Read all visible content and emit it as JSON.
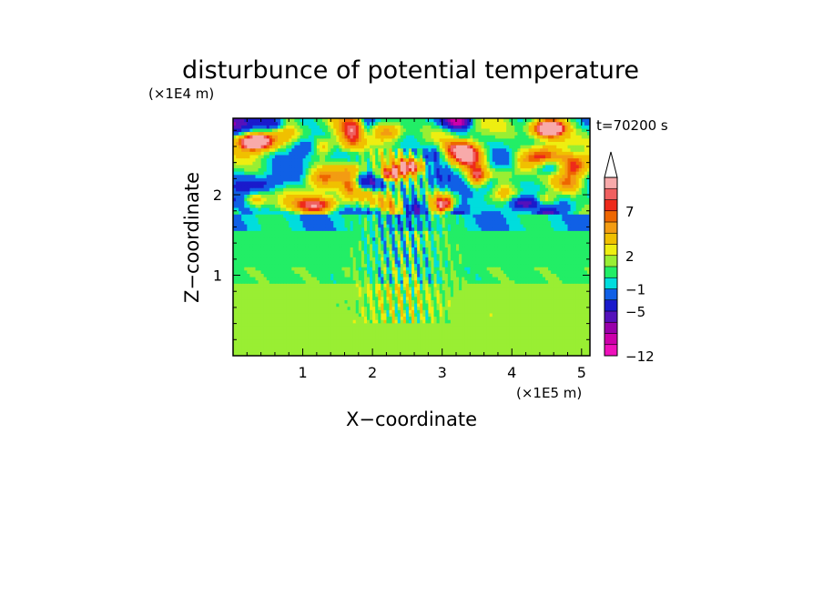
{
  "chart_data": {
    "type": "heatmap",
    "title": "disturbunce of potential temperature",
    "time_label": "t=70200 s",
    "xlabel": "X−coordinate",
    "ylabel": "Z−coordinate",
    "x_scale_label": "(×1E5 m)",
    "y_scale_label": "(×1E4 m)",
    "xlim": [
      0,
      5.12
    ],
    "ylim": [
      0,
      2.95
    ],
    "xticks": [
      {
        "value": 1,
        "label": "1"
      },
      {
        "value": 2,
        "label": "2"
      },
      {
        "value": 3,
        "label": "3"
      },
      {
        "value": 4,
        "label": "4"
      },
      {
        "value": 5,
        "label": "5"
      }
    ],
    "yticks": [
      {
        "value": 1,
        "label": "1"
      },
      {
        "value": 2,
        "label": "2"
      }
    ],
    "colorbar": {
      "levels": [
        -12,
        -10,
        -8,
        -7,
        -5,
        -3,
        -1,
        0,
        1,
        2,
        3,
        5,
        6,
        7,
        8,
        9,
        10
      ],
      "colors": [
        "#ee11bb",
        "#cc00aa",
        "#9900aa",
        "#5511bb",
        "#1a1acc",
        "#1060e6",
        "#00dddd",
        "#22ee66",
        "#99ee33",
        "#eeee11",
        "#f0c000",
        "#f39c12",
        "#ee6600",
        "#ee2a1a",
        "#f06060",
        "#f8aaaa"
      ],
      "extend": "max",
      "labels": [
        {
          "value": 7,
          "label": "7"
        },
        {
          "value": 2,
          "label": "2"
        },
        {
          "value": -1,
          "label": "−1"
        },
        {
          "value": -5,
          "label": "−5"
        },
        {
          "value": -12,
          "label": "−12"
        }
      ]
    },
    "field_description": [
      {
        "z_range": [
          0,
          0.9
        ],
        "approx_value": 1.5
      },
      {
        "z_range": [
          0.9,
          1.55
        ],
        "approx_value": 0.5
      },
      {
        "z_range": [
          1.55,
          2.95
        ],
        "approx_value_range": [
          -6,
          8
        ]
      }
    ],
    "grid": false,
    "legend": "right"
  }
}
